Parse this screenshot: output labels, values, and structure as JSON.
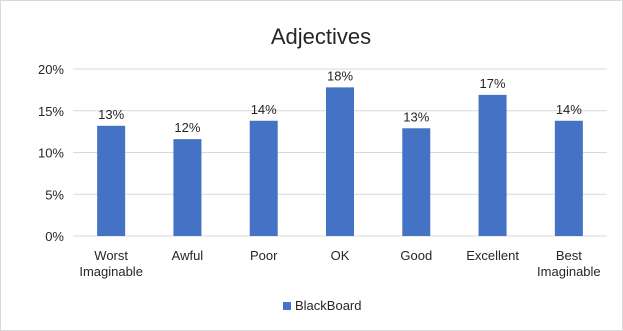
{
  "chart_data": {
    "type": "bar",
    "title": "Adjectives",
    "xlabel": "",
    "ylabel": "",
    "categories": [
      [
        "Worst",
        "Imaginable"
      ],
      [
        "Awful"
      ],
      [
        "Poor"
      ],
      [
        "OK"
      ],
      [
        "Good"
      ],
      [
        "Excellent"
      ],
      [
        "Best",
        "Imaginable"
      ]
    ],
    "series": [
      {
        "name": "BlackBoard",
        "values": [
          0.132,
          0.116,
          0.138,
          0.178,
          0.129,
          0.169,
          0.138
        ],
        "labels": [
          "13%",
          "12%",
          "14%",
          "18%",
          "13%",
          "17%",
          "14%"
        ],
        "color": "#4472c4"
      }
    ],
    "ylim": [
      0,
      0.2
    ],
    "yticks": [
      0,
      0.05,
      0.1,
      0.15,
      0.2
    ],
    "ytick_labels": [
      "0%",
      "5%",
      "10%",
      "15%",
      "20%"
    ],
    "grid": "horizontal",
    "legend_position": "bottom"
  },
  "colors": {
    "grid": "#d9d9d9",
    "bar": "#4472c4",
    "text": "#262626"
  }
}
